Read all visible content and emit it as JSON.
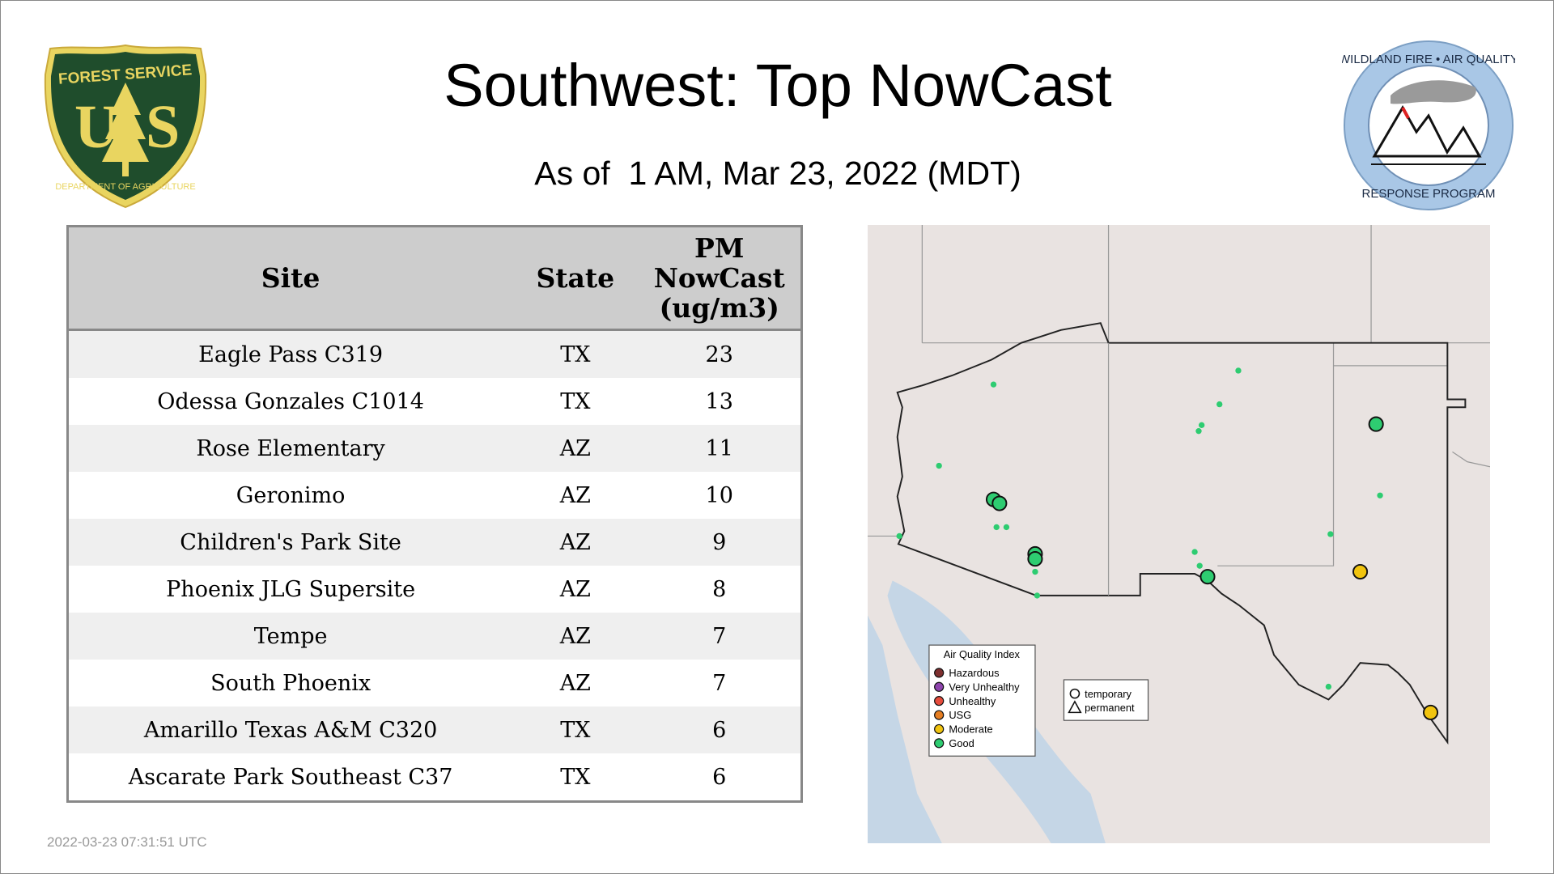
{
  "header": {
    "title": "Southwest: Top NowCast",
    "subtitle": "As of  1 AM, Mar 23, 2022 (MDT)"
  },
  "logos": {
    "left": {
      "name": "USDA Forest Service",
      "text_top": "FOREST SERVICE",
      "text_main": "U S",
      "text_bottom": "DEPARTMENT OF AGRICULTURE"
    },
    "right": {
      "name": "Wildland Fire Air Quality Response Program",
      "text_top": "WILDLAND FIRE • AIR QUALITY",
      "text_bottom": "RESPONSE PROGRAM"
    }
  },
  "table": {
    "headers": [
      "Site",
      "State",
      "PM NowCast (ug/m3)"
    ],
    "rows": [
      [
        "Eagle Pass C319",
        "TX",
        "23"
      ],
      [
        "Odessa Gonzales C1014",
        "TX",
        "13"
      ],
      [
        "Rose Elementary",
        "AZ",
        "11"
      ],
      [
        "Geronimo",
        "AZ",
        "10"
      ],
      [
        "Children's Park Site",
        "AZ",
        "9"
      ],
      [
        "Phoenix JLG Supersite",
        "AZ",
        "8"
      ],
      [
        "Tempe",
        "AZ",
        "7"
      ],
      [
        "South Phoenix",
        "AZ",
        "7"
      ],
      [
        "Amarillo Texas A&M C320",
        "TX",
        "6"
      ],
      [
        "Ascarate Park Southeast C37",
        "TX",
        "6"
      ]
    ]
  },
  "map": {
    "aqi_legend": {
      "title": "Air Quality Index",
      "items": [
        {
          "label": "Hazardous",
          "color": "#7e2f2f"
        },
        {
          "label": "Very Unhealthy",
          "color": "#8e44ad"
        },
        {
          "label": "Unhealthy",
          "color": "#e74c3c"
        },
        {
          "label": "USG",
          "color": "#e67e22"
        },
        {
          "label": "Moderate",
          "color": "#f1c40f"
        },
        {
          "label": "Good",
          "color": "#2ecc71"
        }
      ]
    },
    "type_legend": {
      "items": [
        {
          "label": "temporary",
          "icon": "circle"
        },
        {
          "label": "permanent",
          "icon": "triangle"
        }
      ]
    },
    "colors": {
      "land": "#e9e3e1",
      "water": "#c5d6e6",
      "border": "#222222",
      "good": "#2ecc71",
      "moderate": "#f1c40f"
    }
  },
  "footer": {
    "timestamp": "2022-03-23 07:31:51 UTC"
  }
}
